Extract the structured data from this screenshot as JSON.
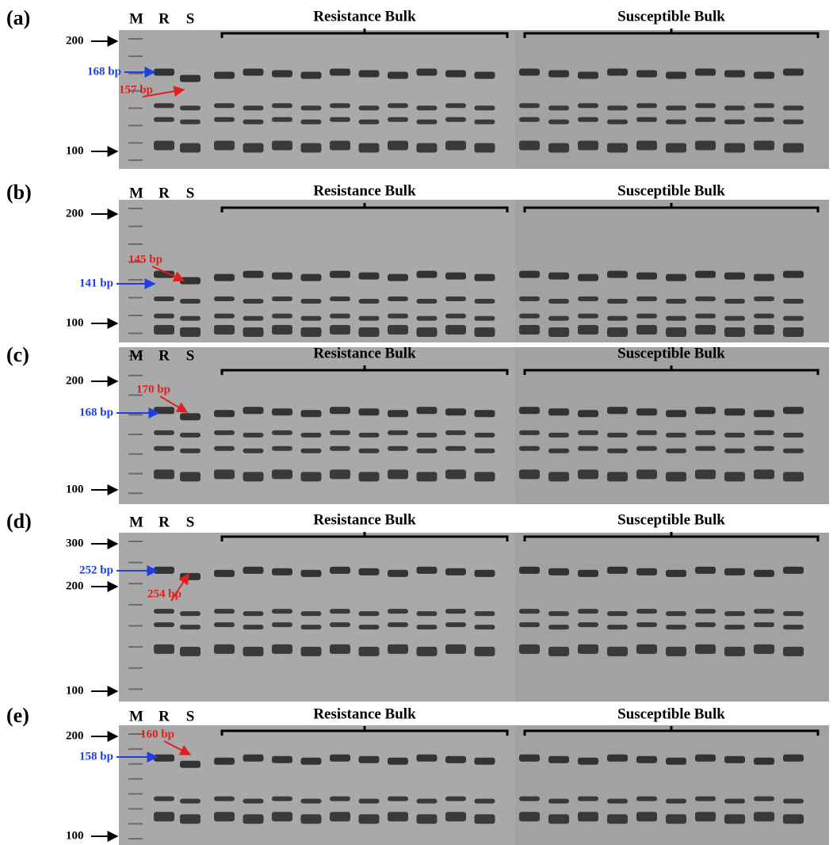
{
  "panels": [
    {
      "label": "(a)",
      "lanes": [
        "M",
        "R",
        "S"
      ],
      "groups": [
        "Resistance Bulk",
        "Susceptible Bulk"
      ],
      "markers": [
        "200",
        "100"
      ],
      "alleles": [
        {
          "text": "168 bp",
          "color": "#1f3fe0"
        },
        {
          "text": "157 bp",
          "color": "#e02020"
        }
      ]
    },
    {
      "label": "(b)",
      "lanes": [
        "M",
        "R",
        "S"
      ],
      "groups": [
        "Resistance Bulk",
        "Susceptible Bulk"
      ],
      "markers": [
        "200",
        "100"
      ],
      "alleles": [
        {
          "text": "145 bp",
          "color": "#e02020"
        },
        {
          "text": "141 bp",
          "color": "#1f3fe0"
        }
      ]
    },
    {
      "label": "(c)",
      "lanes": [
        "M",
        "R",
        "S"
      ],
      "groups": [
        "Resistance Bulk",
        "Susceptible Bulk"
      ],
      "markers": [
        "200",
        "100"
      ],
      "alleles": [
        {
          "text": "170 bp",
          "color": "#e02020"
        },
        {
          "text": "168 bp",
          "color": "#1f3fe0"
        }
      ]
    },
    {
      "label": "(d)",
      "lanes": [
        "M",
        "R",
        "S"
      ],
      "groups": [
        "Resistance Bulk",
        "Susceptible Bulk"
      ],
      "markers": [
        "300",
        "200",
        "100"
      ],
      "alleles": [
        {
          "text": "252 bp",
          "color": "#1f3fe0"
        },
        {
          "text": "254 bp",
          "color": "#e02020"
        }
      ]
    },
    {
      "label": "(e)",
      "lanes": [
        "M",
        "R",
        "S"
      ],
      "groups": [
        "Resistance Bulk",
        "Susceptible Bulk"
      ],
      "markers": [
        "200",
        "100"
      ],
      "alleles": [
        {
          "text": "160 bp",
          "color": "#e02020"
        },
        {
          "text": "158 bp",
          "color": "#1f3fe0"
        }
      ]
    }
  ]
}
